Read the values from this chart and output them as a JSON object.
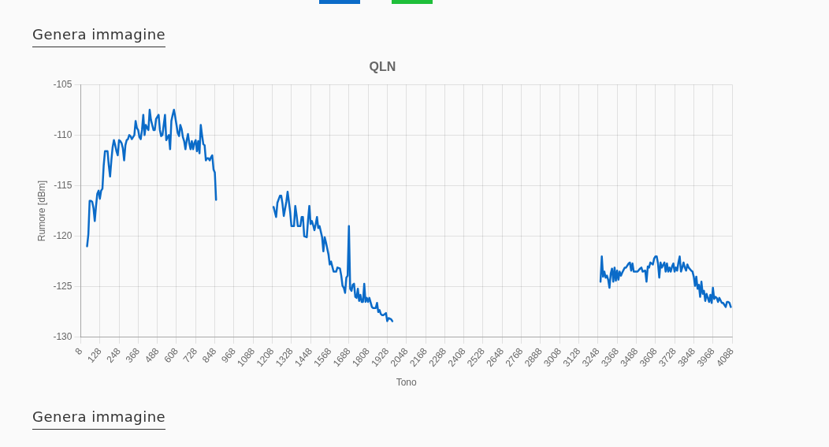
{
  "chart_data": {
    "type": "line",
    "title": "QLN",
    "xlabel": "Tono",
    "ylabel": "Rumore [dBm]",
    "annotations": [
      "Genera immagine",
      "Genera immagine"
    ],
    "color": "#0b6bc8",
    "marker": "none",
    "line_style": "solid",
    "grid": true,
    "xlim": [
      8,
      4088
    ],
    "xticks": [
      8,
      128,
      248,
      368,
      488,
      608,
      728,
      848,
      968,
      1088,
      1208,
      1328,
      1448,
      1568,
      1688,
      1808,
      1928,
      2048,
      2168,
      2288,
      2408,
      2528,
      2648,
      2768,
      2888,
      3008,
      3128,
      3248,
      3368,
      3488,
      3608,
      3728,
      3848,
      3968,
      4088
    ],
    "ylim": [
      -130,
      -105
    ],
    "yticks": [
      -130,
      -125,
      -120,
      -115,
      -110,
      -105
    ],
    "x": [
      48,
      56,
      64,
      72,
      80,
      88,
      96,
      104,
      112,
      120,
      128,
      136,
      144,
      152,
      160,
      168,
      176,
      184,
      192,
      200,
      208,
      216,
      224,
      232,
      240,
      248,
      256,
      264,
      272,
      280,
      288,
      296,
      304,
      312,
      320,
      328,
      336,
      344,
      352,
      360,
      368,
      376,
      384,
      392,
      400,
      408,
      416,
      424,
      432,
      440,
      448,
      456,
      464,
      472,
      480,
      488,
      496,
      504,
      512,
      520,
      528,
      536,
      544,
      552,
      560,
      568,
      576,
      584,
      592,
      600,
      608,
      616,
      624,
      632,
      640,
      648,
      656,
      664,
      672,
      680,
      688,
      696,
      704,
      712,
      720,
      728,
      736,
      744,
      752,
      760,
      768,
      776,
      784,
      792,
      800,
      808,
      816,
      824,
      832,
      840,
      848,
      856,
      864,
      1216,
      1232,
      1240,
      1256,
      1264,
      1272,
      1280,
      1296,
      1304,
      1312,
      1320,
      1328,
      1344,
      1352,
      1360,
      1368,
      1384,
      1392,
      1400,
      1408,
      1424,
      1432,
      1440,
      1448,
      1456,
      1464,
      1472,
      1480,
      1488,
      1496,
      1504,
      1520,
      1528,
      1536,
      1544,
      1560,
      1568,
      1576,
      1584,
      1592,
      1608,
      1616,
      1632,
      1640,
      1648,
      1656,
      1664,
      1672,
      1680,
      1688,
      1696,
      1704,
      1712,
      1720,
      1728,
      1736,
      1744,
      1752,
      1760,
      1768,
      1776,
      1784,
      1792,
      1800,
      1808,
      1816,
      1832,
      1840,
      1856,
      1864,
      1872,
      1880,
      1888,
      1896,
      1904,
      1920,
      1928,
      1936,
      1952,
      1960,
      3256,
      3264,
      3272,
      3280,
      3288,
      3296,
      3304,
      3312,
      3320,
      3328,
      3336,
      3344,
      3352,
      3360,
      3368,
      3376,
      3384,
      3392,
      3400,
      3416,
      3424,
      3440,
      3448,
      3456,
      3464,
      3472,
      3488,
      3496,
      3512,
      3520,
      3528,
      3544,
      3552,
      3560,
      3568,
      3576,
      3592,
      3600,
      3608,
      3616,
      3624,
      3632,
      3640,
      3648,
      3664,
      3672,
      3680,
      3688,
      3696,
      3704,
      3712,
      3720,
      3728,
      3736,
      3744,
      3752,
      3760,
      3768,
      3776,
      3784,
      3792,
      3800,
      3808,
      3816,
      3832,
      3840,
      3848,
      3856,
      3864,
      3872,
      3880,
      3888,
      3896,
      3904,
      3912,
      3920,
      3928,
      3944,
      3952,
      3960,
      3968,
      3976,
      3984,
      3992,
      4000,
      4008,
      4024,
      4032,
      4048,
      4056,
      4064,
      4072,
      4080
    ],
    "values": [
      -121.0,
      -119.8,
      -116.5,
      -116.5,
      -116.6,
      -117.2,
      -118.5,
      -117.0,
      -115.8,
      -115.5,
      -116.3,
      -115.5,
      -115.3,
      -113.0,
      -111.6,
      -111.6,
      -111.6,
      -113.0,
      -114.1,
      -112.5,
      -111.2,
      -110.5,
      -111.0,
      -111.6,
      -112.0,
      -110.5,
      -110.6,
      -110.8,
      -111.3,
      -112.5,
      -111.0,
      -110.5,
      -110.4,
      -110.0,
      -110.1,
      -110.4,
      -110.2,
      -110.0,
      -108.6,
      -109.3,
      -109.5,
      -110.2,
      -110.4,
      -109.5,
      -108.0,
      -110.0,
      -109.0,
      -109.3,
      -109.5,
      -107.5,
      -108.5,
      -109.0,
      -109.5,
      -109.5,
      -108.4,
      -108.2,
      -108.0,
      -109.5,
      -110.1,
      -110.0,
      -109.0,
      -108.0,
      -110.5,
      -110.2,
      -110.0,
      -111.4,
      -108.6,
      -108.0,
      -107.5,
      -108.2,
      -109.0,
      -109.8,
      -110.1,
      -109.0,
      -109.4,
      -110.2,
      -110.6,
      -111.4,
      -110.5,
      -109.9,
      -110.8,
      -111.4,
      -110.6,
      -111.4,
      -110.8,
      -110.5,
      -111.6,
      -110.6,
      -111.8,
      -109.0,
      -110.0,
      -110.9,
      -111.0,
      -112.5,
      -112.3,
      -112.3,
      -112.5,
      -112.2,
      -112.0,
      -113.4,
      -113.7,
      -116.4,
      null,
      -117.1,
      -118.1,
      -116.7,
      -116.0,
      -116.0,
      -116.8,
      -118.0,
      -116.6,
      -115.6,
      -116.6,
      -117.6,
      -119.0,
      -119.0,
      -117.0,
      -117.9,
      -119.0,
      -119.0,
      -118.1,
      -118.1,
      -120.0,
      -120.1,
      -118.4,
      -117.0,
      -118.8,
      -118.5,
      -118.9,
      -119.4,
      -118.8,
      -118.1,
      -119.2,
      -119.0,
      -120.1,
      -121.5,
      -120.1,
      -120.6,
      -121.8,
      -122.8,
      -122.5,
      -123.0,
      -123.5,
      -123.5,
      -123.1,
      -123.2,
      -123.9,
      -124.9,
      -125.1,
      -125.6,
      -124.1,
      -123.9,
      -119.0,
      -125.2,
      -125.4,
      -124.8,
      -124.7,
      -126.0,
      -126.1,
      -125.2,
      -126.4,
      -125.8,
      -126.5,
      -126.5,
      -124.7,
      -126.5,
      -126.1,
      -126.5,
      -126.1,
      -127.0,
      -127.1,
      -127.1,
      -126.6,
      -127.5,
      -127.3,
      -127.7,
      -127.8,
      -127.8,
      -127.6,
      -128.4,
      -128.1,
      -128.2,
      -128.4,
      null,
      -124.5,
      -122.0,
      -124.0,
      -123.5,
      -124.1,
      -123.9,
      -124.3,
      -125.1,
      -123.7,
      -123.2,
      -124.5,
      -123.1,
      -124.4,
      -123.4,
      -124.3,
      -123.5,
      -123.9,
      -123.6,
      -123.1,
      -123.1,
      -122.7,
      -122.6,
      -123.4,
      -122.7,
      -123.5,
      -123.5,
      -123.5,
      -123.2,
      -123.1,
      -123.5,
      -123.4,
      -124.5,
      -123.0,
      -123.1,
      -122.6,
      -122.8,
      -122.2,
      -122.0,
      -122.0,
      -122.7,
      -124.1,
      -122.6,
      -123.1,
      -122.6,
      -123.5,
      -122.7,
      -123.5,
      -123.1,
      -123.5,
      -123.0,
      -122.7,
      -123.5,
      -123.1,
      -123.4,
      -122.6,
      -122.0,
      -123.5,
      -123.1,
      -122.6,
      -123.1,
      -123.4,
      -122.8,
      -123.1,
      -123.4,
      -123.5,
      -124.0,
      -124.9,
      -124.0,
      -125.2,
      -124.8,
      -126.0,
      -124.5,
      -125.7,
      -125.4,
      -126.4,
      -125.7,
      -126.5,
      -125.8,
      -126.6,
      -125.1,
      -126.2,
      -126.0,
      -126.1,
      -126.5,
      -126.1,
      -126.6,
      -126.6,
      -127.0,
      -126.5,
      -126.5,
      -126.6,
      -127.0
    ]
  }
}
